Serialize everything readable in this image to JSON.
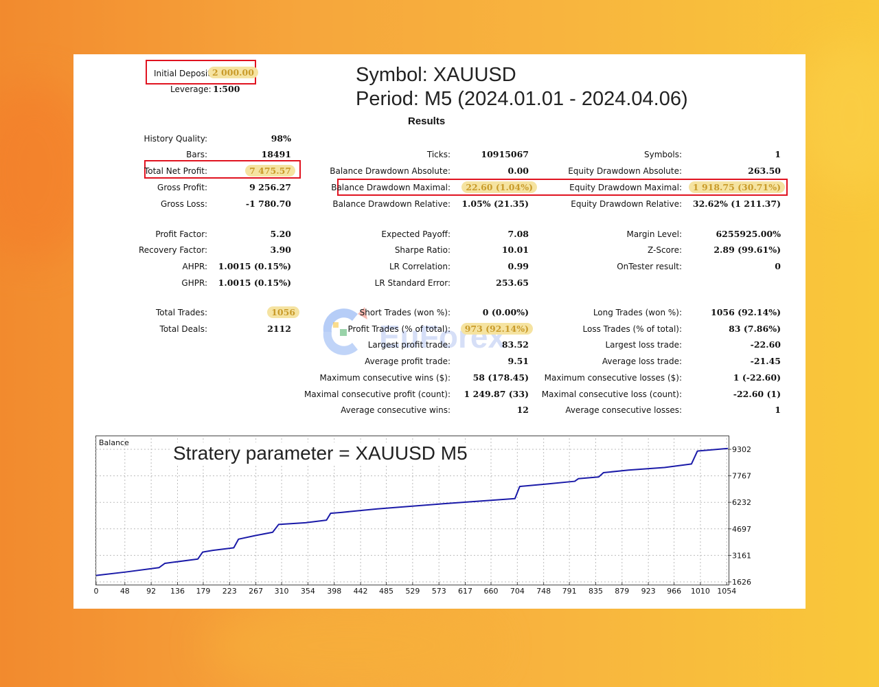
{
  "header": {
    "initial_deposit_label": "Initial Deposit:",
    "initial_deposit_value": "2 000.00",
    "leverage_label": "Leverage:",
    "leverage_value": "1:500",
    "symbol_line": "Symbol:  XAUUSD",
    "period_line": "Period: M5 (2024.01.01 - 2024.04.06)",
    "results_heading": "Results"
  },
  "col1": [
    {
      "label": "History Quality:",
      "value": "98%"
    },
    {
      "label": "Bars:",
      "value": "18491"
    },
    {
      "label": "Total Net Profit:",
      "value": "7 475.57"
    },
    {
      "label": "Gross Profit:",
      "value": "9 256.27"
    },
    {
      "label": "Gross Loss:",
      "value": "-1 780.70"
    },
    {
      "label": "Profit Factor:",
      "value": "5.20"
    },
    {
      "label": "Recovery Factor:",
      "value": "3.90"
    },
    {
      "label": "AHPR:",
      "value": "1.0015 (0.15%)"
    },
    {
      "label": "GHPR:",
      "value": "1.0015 (0.15%)"
    },
    {
      "label": "Total Trades:",
      "value": "1056"
    },
    {
      "label": "Total Deals:",
      "value": "2112"
    }
  ],
  "col2": [
    {
      "label": "Ticks:",
      "value": "10915067"
    },
    {
      "label": "Balance Drawdown Absolute:",
      "value": "0.00"
    },
    {
      "label": "Balance Drawdown Maximal:",
      "value": "22.60 (1.04%)"
    },
    {
      "label": "Balance Drawdown Relative:",
      "value": "1.05% (21.35)"
    },
    {
      "label": "Expected Payoff:",
      "value": "7.08"
    },
    {
      "label": "Sharpe Ratio:",
      "value": "10.01"
    },
    {
      "label": "LR Correlation:",
      "value": "0.99"
    },
    {
      "label": "LR Standard Error:",
      "value": "253.65"
    },
    {
      "label": "Short Trades (won %):",
      "value": "0 (0.00%)"
    },
    {
      "label": "Profit Trades (% of total):",
      "value": "973 (92.14%)"
    },
    {
      "label": "Largest profit trade:",
      "value": "83.52"
    },
    {
      "label": "Average profit trade:",
      "value": "9.51"
    },
    {
      "label": "Maximum consecutive wins ($):",
      "value": "58 (178.45)"
    },
    {
      "label": "Maximal consecutive profit (count):",
      "value": "1 249.87 (33)"
    },
    {
      "label": "Average consecutive wins:",
      "value": "12"
    }
  ],
  "col3": [
    {
      "label": "Symbols:",
      "value": "1"
    },
    {
      "label": "Equity Drawdown Absolute:",
      "value": "263.50"
    },
    {
      "label": "Equity Drawdown Maximal:",
      "value": "1 918.75 (30.71%)"
    },
    {
      "label": "Equity Drawdown Relative:",
      "value": "32.62% (1 211.37)"
    },
    {
      "label": "Margin Level:",
      "value": "6255925.00%"
    },
    {
      "label": "Z-Score:",
      "value": "2.89 (99.61%)"
    },
    {
      "label": "OnTester result:",
      "value": "0"
    },
    {
      "label": "Long Trades (won %):",
      "value": "1056 (92.14%)"
    },
    {
      "label": "Loss Trades (% of total):",
      "value": "83 (7.86%)"
    },
    {
      "label": "Largest loss trade:",
      "value": "-22.60"
    },
    {
      "label": "Average loss trade:",
      "value": "-21.45"
    },
    {
      "label": "Maximum consecutive losses ($):",
      "value": "1 (-22.60)"
    },
    {
      "label": "Maximal consecutive loss (count):",
      "value": "-22.60 (1)"
    },
    {
      "label": "Average consecutive losses:",
      "value": "1"
    }
  ],
  "watermark": {
    "text": "EuForex",
    "colors": [
      "#2f6fe8",
      "#e94b35",
      "#f6b91b",
      "#34a853"
    ]
  },
  "colors": {
    "highlight": "#f5e3a1",
    "red_box": "#e0121f",
    "line": "#1a1aa8"
  },
  "chart_data": {
    "type": "line",
    "title": "Stratery parameter = XAUUSD M5",
    "ylabel": "Balance",
    "x_ticks": [
      0,
      48,
      92,
      136,
      179,
      223,
      267,
      310,
      354,
      398,
      442,
      485,
      529,
      573,
      617,
      660,
      704,
      748,
      791,
      835,
      879,
      923,
      966,
      1010,
      1054
    ],
    "y_ticks": [
      1626,
      3161,
      4697,
      6232,
      7767,
      9302
    ],
    "xlim": [
      0,
      1056
    ],
    "ylim": [
      1626,
      9302
    ],
    "grid": true,
    "series": [
      {
        "name": "Balance",
        "color": "#1a1aa8",
        "x": [
          0,
          50,
          105,
          115,
          170,
          178,
          195,
          230,
          238,
          265,
          295,
          305,
          350,
          385,
          392,
          410,
          470,
          525,
          580,
          640,
          700,
          708,
          755,
          800,
          806,
          840,
          848,
          890,
          950,
          995,
          1005,
          1058
        ],
        "y": [
          2000,
          2200,
          2450,
          2700,
          2950,
          3350,
          3450,
          3600,
          4100,
          4300,
          4500,
          4950,
          5050,
          5200,
          5600,
          5650,
          5850,
          6000,
          6150,
          6300,
          6450,
          7150,
          7300,
          7450,
          7600,
          7700,
          7950,
          8100,
          8250,
          8450,
          9200,
          9350
        ]
      }
    ]
  }
}
